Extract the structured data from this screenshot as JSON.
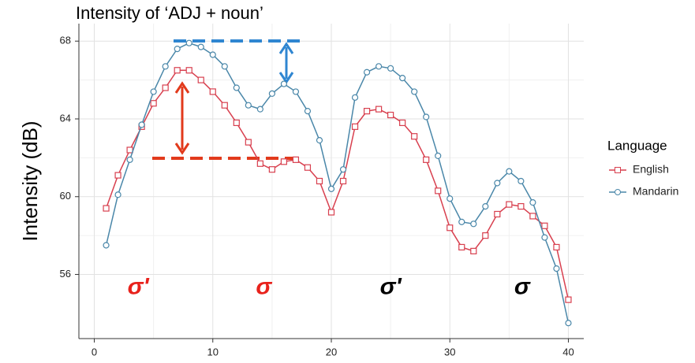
{
  "chart_data": {
    "type": "line",
    "title": "Intensity of ‘ADJ + noun’",
    "y_label": "Intensity (dB)",
    "legend_title": "Language",
    "legend": "right",
    "grid": true,
    "x": [
      1,
      2,
      3,
      4,
      5,
      6,
      7,
      8,
      9,
      10,
      11,
      12,
      13,
      14,
      15,
      16,
      17,
      18,
      19,
      20,
      21,
      22,
      23,
      24,
      25,
      26,
      27,
      28,
      29,
      30,
      31,
      32,
      33,
      34,
      35,
      36,
      37,
      38,
      39,
      40
    ],
    "xlim": [
      -1.3,
      41.3
    ],
    "xticks": [
      0,
      10,
      20,
      30,
      40
    ],
    "ylim": [
      52.7,
      68.9
    ],
    "yticks": [
      56,
      60,
      64,
      68
    ],
    "series": [
      {
        "name": "English",
        "color": "#d8404f",
        "marker": "square",
        "values": [
          59.4,
          61.1,
          62.4,
          63.6,
          64.8,
          65.6,
          66.5,
          66.5,
          66.0,
          65.4,
          64.7,
          63.8,
          62.8,
          61.7,
          61.4,
          61.8,
          61.9,
          61.5,
          60.8,
          59.2,
          60.8,
          63.6,
          64.4,
          64.5,
          64.2,
          63.8,
          63.1,
          61.9,
          60.3,
          58.4,
          57.4,
          57.2,
          58.0,
          59.1,
          59.6,
          59.5,
          59.0,
          58.5,
          57.4,
          54.7
        ]
      },
      {
        "name": "Mandarin",
        "color": "#4a87a9",
        "marker": "circle",
        "values": [
          57.5,
          60.1,
          61.9,
          63.7,
          65.4,
          66.7,
          67.6,
          67.9,
          67.7,
          67.3,
          66.7,
          65.6,
          64.7,
          64.5,
          65.3,
          65.8,
          65.4,
          64.4,
          62.9,
          60.4,
          61.4,
          65.1,
          66.4,
          66.7,
          66.6,
          66.1,
          65.4,
          64.1,
          62.1,
          59.9,
          58.7,
          58.6,
          59.5,
          60.7,
          61.3,
          60.8,
          59.7,
          57.9,
          56.3,
          53.5
        ]
      }
    ],
    "annotations": [
      {
        "text": "σ'",
        "x": 3.7,
        "y": 55.3,
        "color": "#e8221c"
      },
      {
        "text": "σ",
        "x": 14.3,
        "y": 55.3,
        "color": "#e8221c"
      },
      {
        "text": "σ'",
        "x": 25,
        "y": 55.3,
        "color": "#000000"
      },
      {
        "text": "σ",
        "x": 36.1,
        "y": 55.3,
        "color": "#000000"
      }
    ]
  }
}
